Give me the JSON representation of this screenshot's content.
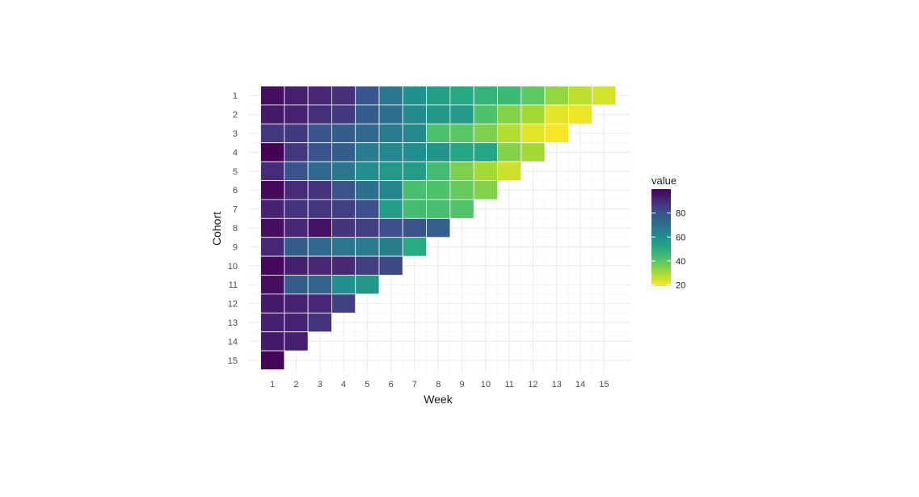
{
  "chart_data": {
    "type": "heatmap",
    "xlabel": "Week",
    "ylabel": "Cohort",
    "x_categories": [
      "1",
      "2",
      "3",
      "4",
      "5",
      "6",
      "7",
      "8",
      "9",
      "10",
      "11",
      "12",
      "13",
      "14",
      "15"
    ],
    "y_categories": [
      "1",
      "2",
      "3",
      "4",
      "5",
      "6",
      "7",
      "8",
      "9",
      "10",
      "11",
      "12",
      "13",
      "14",
      "15"
    ],
    "values": [
      [
        97,
        93,
        91,
        89,
        78,
        68,
        59,
        54,
        51,
        47,
        45,
        39,
        32,
        27,
        24
      ],
      [
        94,
        92,
        89,
        86,
        76,
        70,
        61,
        57,
        56,
        42,
        34,
        30,
        22,
        21
      ],
      [
        87,
        86,
        78,
        76,
        72,
        66,
        62,
        42,
        40,
        35,
        28,
        22,
        20
      ],
      [
        100,
        87,
        79,
        76,
        66,
        62,
        60,
        58,
        52,
        52,
        34,
        30
      ],
      [
        90,
        79,
        72,
        68,
        60,
        56,
        55,
        44,
        35,
        30,
        25
      ],
      [
        98,
        90,
        88,
        79,
        70,
        63,
        43,
        42,
        38,
        34
      ],
      [
        92,
        88,
        87,
        85,
        80,
        55,
        44,
        43,
        41
      ],
      [
        97,
        91,
        96,
        88,
        85,
        80,
        79,
        75
      ],
      [
        91,
        76,
        72,
        68,
        66,
        65,
        50
      ],
      [
        98,
        93,
        91,
        91,
        85,
        82
      ],
      [
        97,
        76,
        74,
        60,
        57
      ],
      [
        94,
        92,
        91,
        84
      ],
      [
        93,
        92,
        88
      ],
      [
        94,
        93
      ],
      [
        99
      ]
    ],
    "legend": {
      "title": "value",
      "ticks": [
        20,
        40,
        60,
        80
      ],
      "range": [
        19,
        100
      ],
      "colormap": "viridis-reversed",
      "placement": "right"
    },
    "grid": true
  }
}
